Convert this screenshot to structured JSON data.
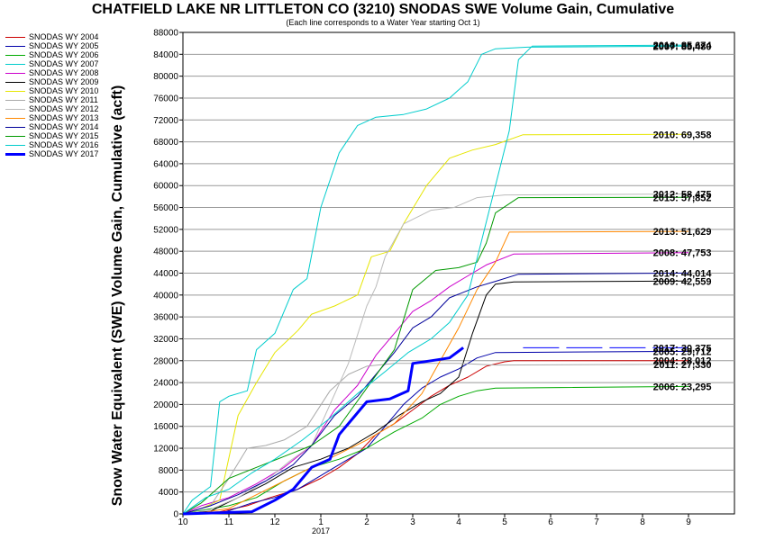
{
  "chart_data": {
    "type": "line",
    "title": "CHATFIELD LAKE NR LITTLETON CO (3210) SNODAS SWE Volume Gain, Cumulative",
    "subtitle": "(Each line corresponds to a Water Year starting Oct 1)",
    "xlabel": "",
    "ylabel": "Snow Water Equivalent (SWE) Volume Gain, Cumulative (acft)",
    "xlim": [
      10,
      22
    ],
    "ylim": [
      0,
      88000
    ],
    "x_ticks": [
      {
        "value": 10,
        "label": "10"
      },
      {
        "value": 11,
        "label": "11"
      },
      {
        "value": 12,
        "label": "12"
      },
      {
        "value": 13,
        "label": "1"
      },
      {
        "value": 14,
        "label": "2"
      },
      {
        "value": 15,
        "label": "3"
      },
      {
        "value": 16,
        "label": "4"
      },
      {
        "value": 17,
        "label": "5"
      },
      {
        "value": 18,
        "label": "6"
      },
      {
        "value": 19,
        "label": "7"
      },
      {
        "value": 20,
        "label": "8"
      },
      {
        "value": 21,
        "label": "9"
      }
    ],
    "x_sublabel": {
      "value": 13,
      "label": "2017"
    },
    "y_ticks": [
      0,
      4000,
      8000,
      12000,
      16000,
      20000,
      24000,
      28000,
      32000,
      36000,
      40000,
      44000,
      48000,
      52000,
      56000,
      60000,
      64000,
      68000,
      72000,
      76000,
      80000,
      84000,
      88000
    ],
    "grid": "horizontal",
    "legend_position": "left",
    "series": [
      {
        "name": "SNODAS WY 2004",
        "color": "#cc0000",
        "width": 1,
        "points": [
          [
            10,
            0
          ],
          [
            10.8,
            400
          ],
          [
            11.4,
            1500
          ],
          [
            11.9,
            3000
          ],
          [
            12.5,
            4500
          ],
          [
            13,
            6500
          ],
          [
            13.4,
            8500
          ],
          [
            13.8,
            11000
          ],
          [
            14.2,
            14500
          ],
          [
            14.6,
            16500
          ],
          [
            15,
            19000
          ],
          [
            15.4,
            21500
          ],
          [
            15.8,
            23500
          ],
          [
            16.2,
            25000
          ],
          [
            16.6,
            27000
          ],
          [
            17,
            27800
          ],
          [
            17.2,
            28000
          ],
          [
            21,
            28012
          ]
        ],
        "end_label": "2004: 28,012"
      },
      {
        "name": "SNODAS WY 2005",
        "color": "#0000aa",
        "width": 1,
        "points": [
          [
            10,
            0
          ],
          [
            10.9,
            300
          ],
          [
            11.5,
            2000
          ],
          [
            12,
            3000
          ],
          [
            12.5,
            4500
          ],
          [
            13,
            7000
          ],
          [
            13.5,
            9500
          ],
          [
            14,
            12000
          ],
          [
            14.4,
            16000
          ],
          [
            14.8,
            20000
          ],
          [
            15.2,
            23000
          ],
          [
            15.6,
            25000
          ],
          [
            16,
            26500
          ],
          [
            16.4,
            28500
          ],
          [
            16.8,
            29500
          ],
          [
            21,
            29712
          ]
        ],
        "end_label": "2005: 29,712"
      },
      {
        "name": "SNODAS WY 2006",
        "color": "#00aa00",
        "width": 1,
        "points": [
          [
            10,
            0
          ],
          [
            10.3,
            500
          ],
          [
            11,
            1500
          ],
          [
            11.6,
            3000
          ],
          [
            12.2,
            6000
          ],
          [
            12.8,
            8500
          ],
          [
            13.4,
            10000
          ],
          [
            14,
            12000
          ],
          [
            14.6,
            15000
          ],
          [
            15.2,
            17500
          ],
          [
            15.6,
            20000
          ],
          [
            16,
            21500
          ],
          [
            16.4,
            22500
          ],
          [
            16.8,
            23000
          ],
          [
            21,
            23295
          ]
        ],
        "end_label": "2006: 23,295"
      },
      {
        "name": "SNODAS WY 2007",
        "color": "#00cccc",
        "width": 1,
        "points": [
          [
            10,
            0
          ],
          [
            10.2,
            2500
          ],
          [
            10.6,
            5000
          ],
          [
            10.8,
            20500
          ],
          [
            11,
            21500
          ],
          [
            11.4,
            22500
          ],
          [
            11.6,
            30000
          ],
          [
            12,
            33000
          ],
          [
            12.4,
            41000
          ],
          [
            12.7,
            43000
          ],
          [
            13,
            56000
          ],
          [
            13.4,
            66000
          ],
          [
            13.8,
            71000
          ],
          [
            14.2,
            72500
          ],
          [
            14.8,
            73000
          ],
          [
            15.3,
            74000
          ],
          [
            15.8,
            76000
          ],
          [
            16.2,
            79000
          ],
          [
            16.5,
            84000
          ],
          [
            16.8,
            85000
          ],
          [
            17.5,
            85300
          ],
          [
            21,
            85480
          ]
        ],
        "end_label": "2007: 85,480"
      },
      {
        "name": "SNODAS WY 2008",
        "color": "#cc00cc",
        "width": 1,
        "points": [
          [
            10,
            0
          ],
          [
            10.4,
            1500
          ],
          [
            11,
            3000
          ],
          [
            11.6,
            5500
          ],
          [
            12.2,
            8500
          ],
          [
            12.8,
            12500
          ],
          [
            13.3,
            19000
          ],
          [
            13.8,
            23500
          ],
          [
            14.2,
            29000
          ],
          [
            14.6,
            33000
          ],
          [
            15,
            37000
          ],
          [
            15.4,
            39000
          ],
          [
            15.8,
            41500
          ],
          [
            16.2,
            43500
          ],
          [
            16.6,
            45500
          ],
          [
            17.2,
            47500
          ],
          [
            21,
            47753
          ]
        ],
        "end_label": "2008: 47,753"
      },
      {
        "name": "SNODAS WY 2009",
        "color": "#000000",
        "width": 1,
        "points": [
          [
            10,
            0
          ],
          [
            10.6,
            500
          ],
          [
            11.2,
            3000
          ],
          [
            11.8,
            5500
          ],
          [
            12.4,
            8500
          ],
          [
            13,
            10000
          ],
          [
            13.6,
            12000
          ],
          [
            14.2,
            15000
          ],
          [
            14.7,
            18000
          ],
          [
            15.2,
            20500
          ],
          [
            15.6,
            22000
          ],
          [
            16,
            25000
          ],
          [
            16.3,
            33000
          ],
          [
            16.6,
            40000
          ],
          [
            16.8,
            42000
          ],
          [
            17.2,
            42400
          ],
          [
            21,
            42559
          ]
        ],
        "end_label": "2009: 42,559"
      },
      {
        "name": "SNODAS WY 2010",
        "color": "#e6e600",
        "width": 1,
        "points": [
          [
            10,
            0
          ],
          [
            10.4,
            1000
          ],
          [
            10.8,
            2500
          ],
          [
            11.2,
            18000
          ],
          [
            11.6,
            24000
          ],
          [
            12,
            29500
          ],
          [
            12.5,
            33500
          ],
          [
            12.8,
            36500
          ],
          [
            13.3,
            38000
          ],
          [
            13.8,
            40000
          ],
          [
            14.1,
            47000
          ],
          [
            14.5,
            48000
          ],
          [
            14.8,
            53000
          ],
          [
            15.3,
            60000
          ],
          [
            15.8,
            65000
          ],
          [
            16.3,
            66500
          ],
          [
            16.8,
            67500
          ],
          [
            17.4,
            69300
          ],
          [
            21,
            69358
          ]
        ],
        "end_label": "2010: 69,358"
      },
      {
        "name": "SNODAS WY 2011",
        "color": "#aaaaaa",
        "width": 1,
        "points": [
          [
            10,
            0
          ],
          [
            10.6,
            1500
          ],
          [
            11,
            6500
          ],
          [
            11.4,
            12000
          ],
          [
            11.8,
            12500
          ],
          [
            12.2,
            13500
          ],
          [
            12.7,
            16000
          ],
          [
            13.2,
            22500
          ],
          [
            13.6,
            25500
          ],
          [
            14,
            27000
          ],
          [
            14.6,
            27500
          ],
          [
            15.2,
            27500
          ],
          [
            16,
            27500
          ],
          [
            16.8,
            27200
          ],
          [
            21,
            27330
          ]
        ],
        "end_label": "2011: 27,330"
      },
      {
        "name": "SNODAS WY 2012",
        "color": "#bbbbbb",
        "width": 1,
        "points": [
          [
            10,
            0
          ],
          [
            10.6,
            800
          ],
          [
            11.2,
            3000
          ],
          [
            11.8,
            6000
          ],
          [
            12.3,
            9500
          ],
          [
            12.8,
            12500
          ],
          [
            13.2,
            20000
          ],
          [
            13.6,
            27500
          ],
          [
            14,
            38000
          ],
          [
            14.2,
            41500
          ],
          [
            14.4,
            47000
          ],
          [
            14.8,
            53000
          ],
          [
            15.4,
            55500
          ],
          [
            15.9,
            56000
          ],
          [
            16.4,
            57800
          ],
          [
            17,
            58300
          ],
          [
            21,
            58475
          ]
        ],
        "end_label": "2012: 58,475"
      },
      {
        "name": "SNODAS WY 2013",
        "color": "#ff8800",
        "width": 1,
        "points": [
          [
            10,
            0
          ],
          [
            10.4,
            200
          ],
          [
            11,
            1000
          ],
          [
            11.6,
            3500
          ],
          [
            12.2,
            6000
          ],
          [
            12.8,
            8500
          ],
          [
            13.4,
            11000
          ],
          [
            14,
            13500
          ],
          [
            14.6,
            16500
          ],
          [
            15.2,
            22000
          ],
          [
            15.6,
            28000
          ],
          [
            16,
            34000
          ],
          [
            16.4,
            41000
          ],
          [
            16.8,
            46000
          ],
          [
            17.1,
            51500
          ],
          [
            21,
            51629
          ]
        ],
        "end_label": "2013: 51,629"
      },
      {
        "name": "SNODAS WY 2014",
        "color": "#000099",
        "width": 1,
        "points": [
          [
            10,
            0
          ],
          [
            10.6,
            1500
          ],
          [
            11.2,
            3500
          ],
          [
            11.8,
            6000
          ],
          [
            12.4,
            9000
          ],
          [
            12.8,
            12500
          ],
          [
            13.3,
            18000
          ],
          [
            13.8,
            21500
          ],
          [
            14.2,
            25500
          ],
          [
            14.6,
            29500
          ],
          [
            15,
            34000
          ],
          [
            15.4,
            36000
          ],
          [
            15.8,
            39500
          ],
          [
            16.4,
            41500
          ],
          [
            16.8,
            42500
          ],
          [
            17.3,
            43800
          ],
          [
            21,
            44014
          ]
        ],
        "end_label": "2014: 44,014"
      },
      {
        "name": "SNODAS WY 2015",
        "color": "#009900",
        "width": 1,
        "points": [
          [
            10,
            0
          ],
          [
            10.4,
            2000
          ],
          [
            11,
            6500
          ],
          [
            11.6,
            8500
          ],
          [
            12.2,
            10500
          ],
          [
            12.8,
            12500
          ],
          [
            13.4,
            16000
          ],
          [
            14,
            23000
          ],
          [
            14.6,
            30000
          ],
          [
            15,
            41000
          ],
          [
            15.5,
            44500
          ],
          [
            16,
            45000
          ],
          [
            16.4,
            46000
          ],
          [
            16.6,
            49500
          ],
          [
            16.8,
            55000
          ],
          [
            17.3,
            57800
          ],
          [
            21,
            57852
          ]
        ],
        "end_label": "2015: 57,852"
      },
      {
        "name": "SNODAS WY 2016",
        "color": "#00cccc",
        "width": 1,
        "points": [
          [
            10,
            0
          ],
          [
            10.5,
            3000
          ],
          [
            11,
            4500
          ],
          [
            11.5,
            7500
          ],
          [
            12,
            10000
          ],
          [
            12.6,
            13500
          ],
          [
            13.2,
            17500
          ],
          [
            13.8,
            22000
          ],
          [
            14.4,
            26000
          ],
          [
            14.9,
            29500
          ],
          [
            15.4,
            32000
          ],
          [
            15.8,
            35000
          ],
          [
            16.2,
            40000
          ],
          [
            16.5,
            50000
          ],
          [
            16.8,
            60000
          ],
          [
            17.1,
            70000
          ],
          [
            17.3,
            83000
          ],
          [
            17.6,
            85500
          ],
          [
            21,
            85674
          ]
        ],
        "end_label": "2016: 85,674"
      },
      {
        "name": "SNODAS WY 2017",
        "color": "#0000ff",
        "width": 3,
        "points": [
          [
            10,
            0
          ],
          [
            11.5,
            400
          ],
          [
            12,
            2500
          ],
          [
            12.4,
            4500
          ],
          [
            12.8,
            8500
          ],
          [
            13.2,
            10000
          ],
          [
            13.4,
            14500
          ],
          [
            13.7,
            17500
          ],
          [
            14,
            20500
          ],
          [
            14.5,
            21000
          ],
          [
            14.9,
            22500
          ],
          [
            15,
            27500
          ],
          [
            15.4,
            28000
          ],
          [
            15.8,
            28500
          ],
          [
            16.1,
            30375
          ]
        ],
        "end_label": "2017: 30,375",
        "dashed_extension": true
      }
    ]
  }
}
